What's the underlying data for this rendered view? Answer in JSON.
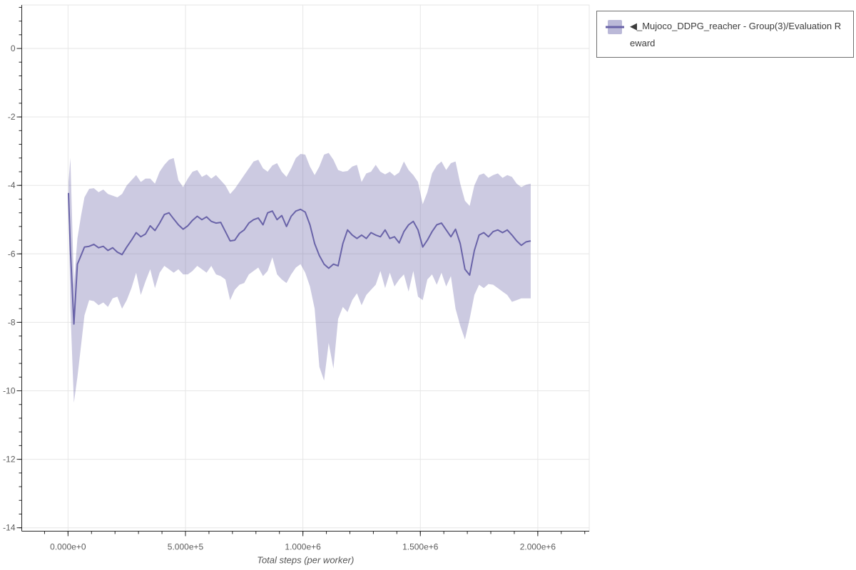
{
  "legend": {
    "label": "◀_Mujoco_DDPG_reacher - Group(3)/Evaluation Reward"
  },
  "style": {
    "background": "#ffffff",
    "grid_color": "#e6e6e6",
    "outline_color": "#e6e6e6",
    "axis_color": "#262626",
    "tick_label_color": "#5c5c5c",
    "axis_title_color": "#555555",
    "legend_border_color": "#6f6f6f",
    "legend_text_color": "#3c3c3c"
  },
  "chart_data": {
    "type": "line",
    "title": "",
    "xlabel": "Total steps (per worker)",
    "ylabel": "",
    "grid": true,
    "has_confidence_band": true,
    "legend_position": "outside-top-right",
    "x_range": [
      -197000,
      2219000
    ],
    "y_range": [
      -14.1,
      1.27
    ],
    "x_minor_divisions": 5,
    "y_minor_divisions": 5,
    "x_ticks": [
      {
        "value": 0,
        "label": "0.000e+0"
      },
      {
        "value": 500000,
        "label": "5.000e+5"
      },
      {
        "value": 1000000,
        "label": "1.000e+6"
      },
      {
        "value": 1500000,
        "label": "1.500e+6"
      },
      {
        "value": 2000000,
        "label": "2.000e+6"
      }
    ],
    "y_ticks": [
      {
        "value": 0,
        "label": "0"
      },
      {
        "value": -2,
        "label": "-2"
      },
      {
        "value": -4,
        "label": "-4"
      },
      {
        "value": -6,
        "label": "-6"
      },
      {
        "value": -8,
        "label": "-8"
      },
      {
        "value": -10,
        "label": "-10"
      },
      {
        "value": -12,
        "label": "-12"
      },
      {
        "value": -14,
        "label": "-14"
      }
    ],
    "series": [
      {
        "name": "◀_Mujoco_DDPG_reacher - Group(3)/Evaluation Reward",
        "color": "#6963a8",
        "band_opacity": 0.34,
        "x": [
          2000,
          10000,
          25000,
          40000,
          55000,
          70000,
          90000,
          110000,
          130000,
          150000,
          170000,
          190000,
          210000,
          230000,
          250000,
          270000,
          290000,
          310000,
          330000,
          350000,
          370000,
          390000,
          410000,
          430000,
          450000,
          470000,
          490000,
          510000,
          530000,
          550000,
          570000,
          590000,
          610000,
          630000,
          650000,
          670000,
          690000,
          710000,
          730000,
          750000,
          770000,
          790000,
          810000,
          830000,
          850000,
          870000,
          890000,
          910000,
          930000,
          950000,
          970000,
          990000,
          1010000,
          1030000,
          1050000,
          1070000,
          1090000,
          1110000,
          1130000,
          1150000,
          1170000,
          1190000,
          1210000,
          1230000,
          1250000,
          1270000,
          1290000,
          1310000,
          1330000,
          1350000,
          1370000,
          1390000,
          1410000,
          1430000,
          1450000,
          1470000,
          1490000,
          1510000,
          1530000,
          1550000,
          1570000,
          1590000,
          1610000,
          1630000,
          1650000,
          1670000,
          1690000,
          1710000,
          1730000,
          1750000,
          1770000,
          1790000,
          1810000,
          1830000,
          1850000,
          1870000,
          1890000,
          1910000,
          1930000,
          1950000,
          1970000
        ],
        "mean": [
          -4.22,
          -5.9,
          -8.05,
          -6.3,
          -6.05,
          -5.8,
          -5.78,
          -5.72,
          -5.82,
          -5.78,
          -5.9,
          -5.82,
          -5.95,
          -6.02,
          -5.8,
          -5.6,
          -5.38,
          -5.5,
          -5.42,
          -5.18,
          -5.32,
          -5.1,
          -4.85,
          -4.8,
          -4.98,
          -5.15,
          -5.28,
          -5.18,
          -5.02,
          -4.9,
          -5.0,
          -4.92,
          -5.05,
          -5.1,
          -5.08,
          -5.35,
          -5.62,
          -5.6,
          -5.4,
          -5.3,
          -5.1,
          -5.0,
          -4.95,
          -5.15,
          -4.8,
          -4.75,
          -5.0,
          -4.88,
          -5.2,
          -4.9,
          -4.75,
          -4.7,
          -4.78,
          -5.15,
          -5.7,
          -6.05,
          -6.3,
          -6.42,
          -6.3,
          -6.35,
          -5.7,
          -5.3,
          -5.45,
          -5.55,
          -5.45,
          -5.55,
          -5.38,
          -5.45,
          -5.5,
          -5.3,
          -5.55,
          -5.5,
          -5.68,
          -5.35,
          -5.15,
          -5.05,
          -5.3,
          -5.8,
          -5.6,
          -5.35,
          -5.15,
          -5.1,
          -5.3,
          -5.5,
          -5.28,
          -5.7,
          -6.45,
          -6.62,
          -5.9,
          -5.45,
          -5.38,
          -5.5,
          -5.35,
          -5.3,
          -5.38,
          -5.3,
          -5.45,
          -5.62,
          -5.75,
          -5.65,
          -5.62
        ],
        "upper": [
          -3.9,
          -3.2,
          -6.9,
          -5.55,
          -4.9,
          -4.35,
          -4.1,
          -4.08,
          -4.2,
          -4.12,
          -4.25,
          -4.3,
          -4.35,
          -4.25,
          -4.0,
          -3.85,
          -3.7,
          -3.9,
          -3.8,
          -3.8,
          -3.95,
          -3.6,
          -3.4,
          -3.25,
          -3.2,
          -3.85,
          -4.05,
          -3.8,
          -3.6,
          -3.55,
          -3.75,
          -3.68,
          -3.8,
          -3.7,
          -3.85,
          -4.0,
          -4.25,
          -4.1,
          -3.9,
          -3.7,
          -3.5,
          -3.3,
          -3.25,
          -3.5,
          -3.6,
          -3.42,
          -3.35,
          -3.6,
          -3.75,
          -3.5,
          -3.2,
          -3.08,
          -3.1,
          -3.45,
          -3.7,
          -3.45,
          -3.1,
          -3.05,
          -3.25,
          -3.55,
          -3.6,
          -3.58,
          -3.45,
          -3.4,
          -3.9,
          -3.65,
          -3.6,
          -3.4,
          -3.6,
          -3.68,
          -3.6,
          -3.72,
          -3.62,
          -3.3,
          -3.55,
          -3.7,
          -3.9,
          -4.55,
          -4.2,
          -3.65,
          -3.42,
          -3.3,
          -3.55,
          -3.35,
          -3.3,
          -3.95,
          -4.45,
          -4.6,
          -4.0,
          -3.7,
          -3.65,
          -3.78,
          -3.7,
          -3.65,
          -3.78,
          -3.7,
          -3.75,
          -3.95,
          -4.05,
          -3.98,
          -3.95
        ],
        "lower": [
          -4.6,
          -7.6,
          -10.35,
          -9.6,
          -8.7,
          -7.8,
          -7.35,
          -7.38,
          -7.5,
          -7.42,
          -7.55,
          -7.3,
          -7.25,
          -7.6,
          -7.35,
          -7.0,
          -6.55,
          -7.2,
          -6.8,
          -6.45,
          -7.0,
          -6.55,
          -6.35,
          -6.45,
          -6.55,
          -6.45,
          -6.6,
          -6.6,
          -6.5,
          -6.35,
          -6.45,
          -6.55,
          -6.35,
          -6.6,
          -6.65,
          -6.75,
          -7.35,
          -7.05,
          -6.9,
          -6.85,
          -6.6,
          -6.5,
          -6.4,
          -6.65,
          -6.5,
          -6.1,
          -6.6,
          -6.75,
          -6.85,
          -6.6,
          -6.4,
          -6.3,
          -6.55,
          -6.95,
          -7.6,
          -9.3,
          -9.7,
          -8.6,
          -9.35,
          -7.9,
          -7.55,
          -7.7,
          -7.35,
          -7.15,
          -7.5,
          -7.2,
          -7.05,
          -6.9,
          -6.5,
          -7.0,
          -6.55,
          -6.95,
          -6.75,
          -6.6,
          -7.1,
          -6.5,
          -7.25,
          -7.35,
          -6.75,
          -6.6,
          -6.9,
          -6.55,
          -6.95,
          -6.65,
          -7.6,
          -8.1,
          -8.5,
          -7.9,
          -7.2,
          -6.9,
          -7.0,
          -6.88,
          -6.9,
          -7.0,
          -7.1,
          -7.2,
          -7.4,
          -7.35,
          -7.3,
          -7.3,
          -7.3
        ]
      }
    ]
  }
}
